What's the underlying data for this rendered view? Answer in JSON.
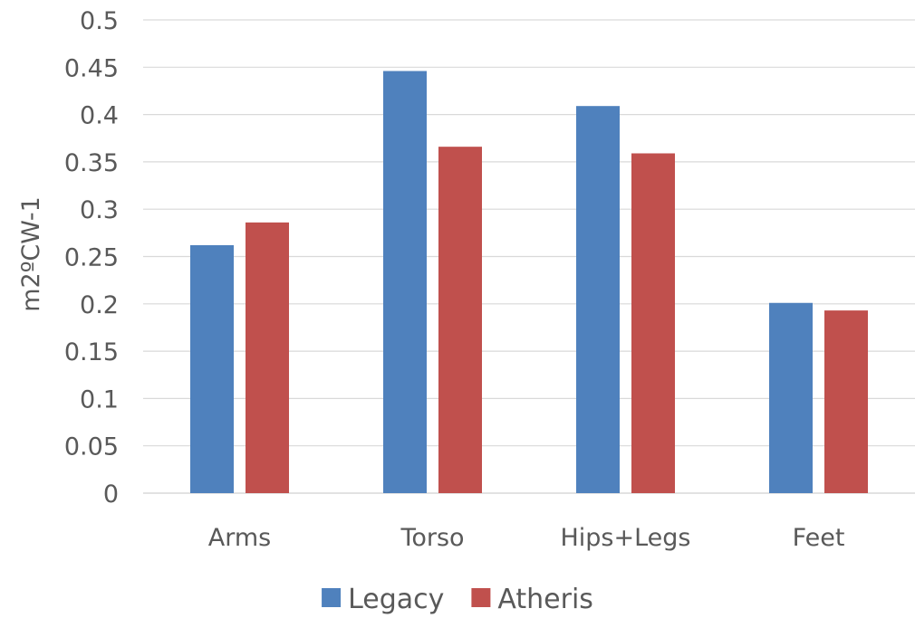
{
  "chart_data": {
    "type": "bar",
    "title": "",
    "xlabel": "",
    "ylabel": "m2ºCW-1",
    "ylim": [
      0,
      0.5
    ],
    "yticks": [
      "0",
      "0.05",
      "0.1",
      "0.15",
      "0.2",
      "0.25",
      "0.3",
      "0.35",
      "0.4",
      "0.45",
      "0.5"
    ],
    "categories": [
      "Arms",
      "Torso",
      "Hips+Legs",
      "Feet"
    ],
    "series": [
      {
        "name": "Legacy",
        "color": "#4f81bd",
        "values": [
          0.262,
          0.446,
          0.409,
          0.201
        ]
      },
      {
        "name": "Atheris",
        "color": "#c0504d",
        "values": [
          0.286,
          0.366,
          0.359,
          0.193
        ]
      }
    ],
    "grid": true,
    "legend": "bottom"
  }
}
